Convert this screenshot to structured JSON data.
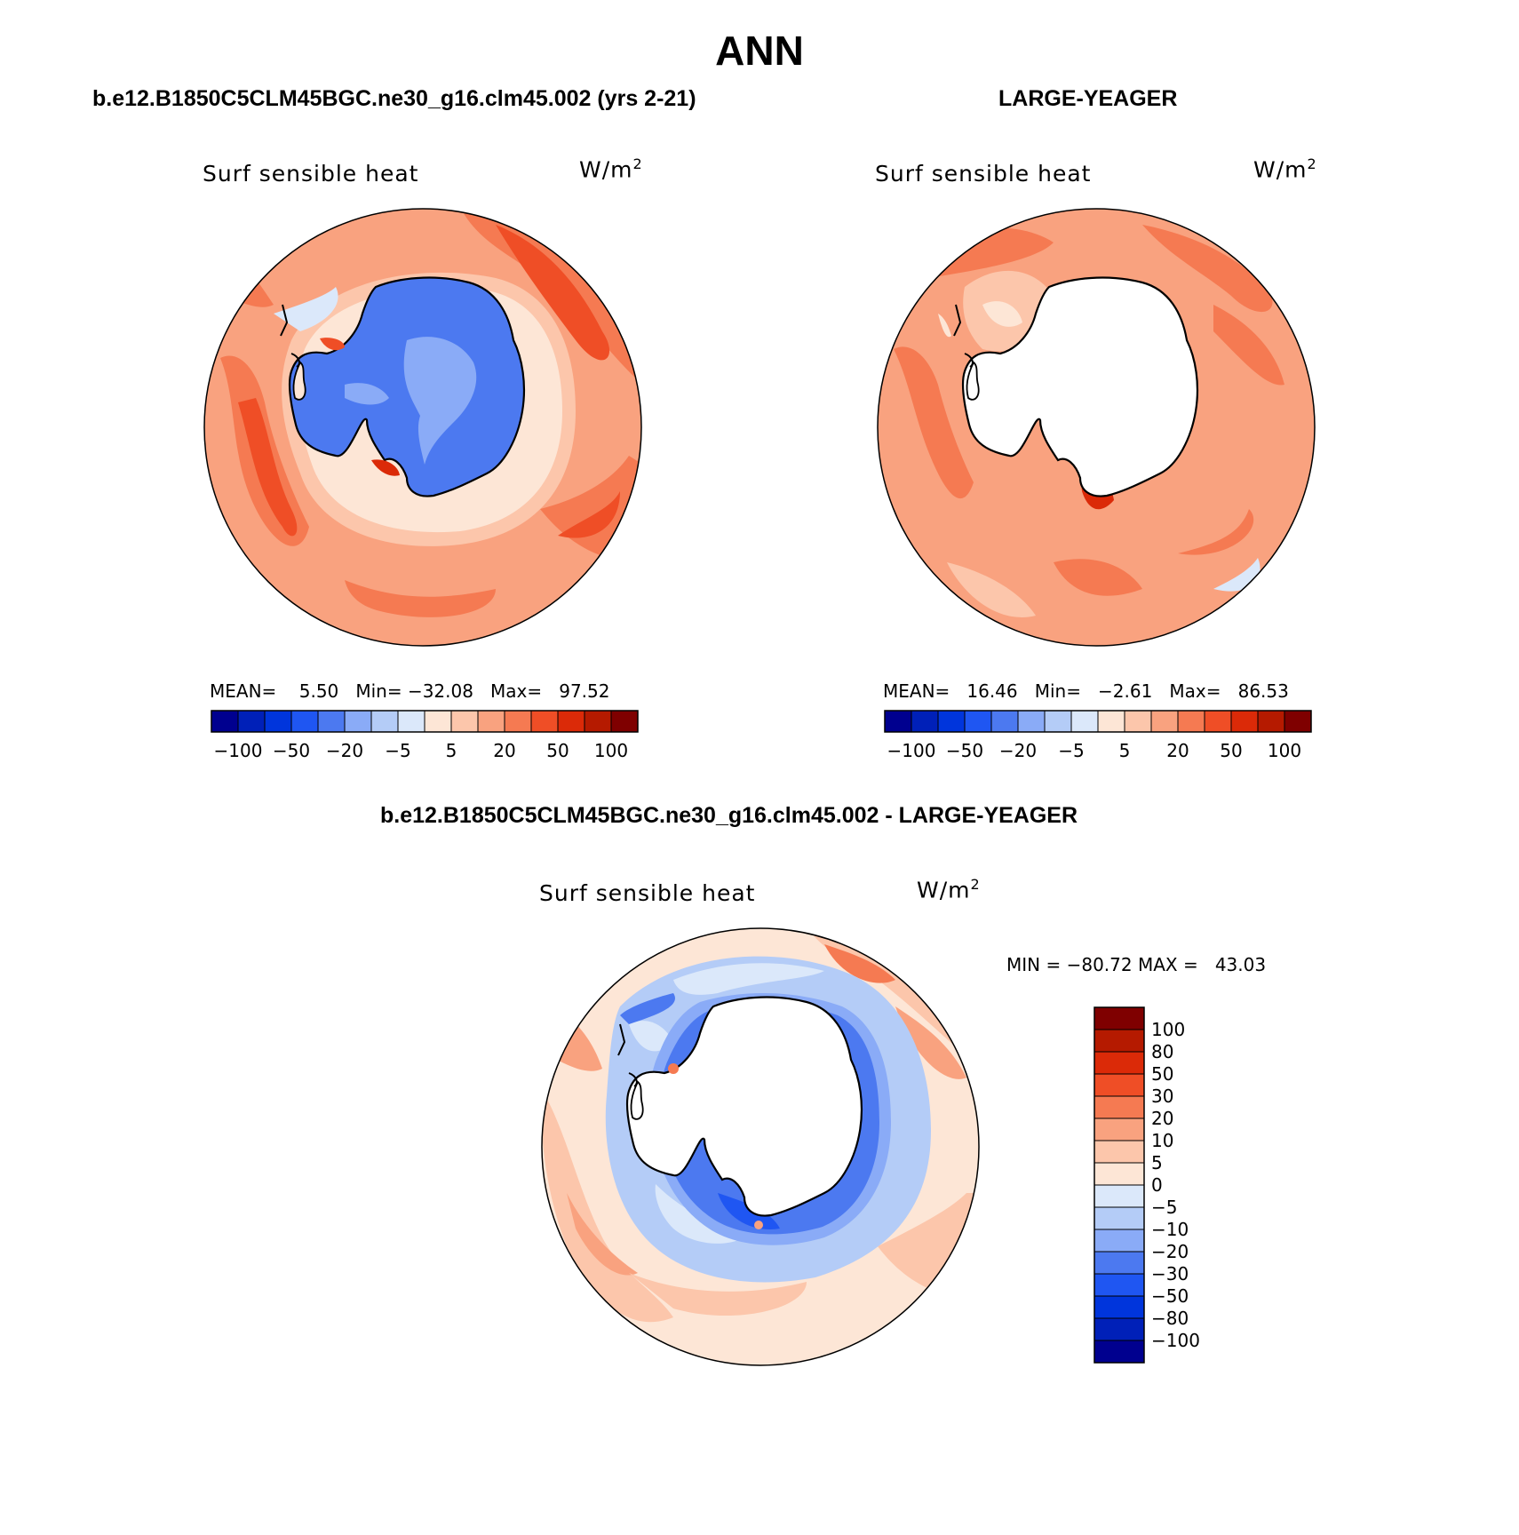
{
  "header": {
    "title": "ANN"
  },
  "panels": [
    {
      "case_title": "b.e12.B1850C5CLM45BGC.ne30_g16.clm45.002 (yrs 2-21)",
      "variable": "Surf  sensible  heat",
      "units": "W/m",
      "units_sup": "2",
      "stats": {
        "mean_label": "MEAN=",
        "mean_value": "5.50",
        "min_label": "Min=",
        "min_value": "−32.08",
        "max_label": "Max=",
        "max_value": "97.52"
      }
    },
    {
      "case_title": "LARGE-YEAGER",
      "variable": "Surf  sensible  heat",
      "units": "W/m",
      "units_sup": "2",
      "stats": {
        "mean_label": "MEAN=",
        "mean_value": "16.46",
        "min_label": "Min=",
        "min_value": "−2.61",
        "max_label": "Max=",
        "max_value": "86.53"
      }
    },
    {
      "case_title": "b.e12.B1850C5CLM45BGC.ne30_g16.clm45.002 - LARGE-YEAGER",
      "variable": "Surf  sensible  heat",
      "units": "W/m",
      "units_sup": "2",
      "stats": {
        "min_label": "MIN =",
        "min_value": "−80.72",
        "max_label": "MAX =",
        "max_value": "43.03"
      }
    }
  ],
  "colorbar_horizontal": {
    "colors": [
      "#00008f",
      "#0020b8",
      "#0035dc",
      "#1f56f2",
      "#4c79f0",
      "#8aabf7",
      "#b4ccf7",
      "#dbe8fa",
      "#fde6d6",
      "#fcc6ab",
      "#f9a27f",
      "#f57a52",
      "#ef4e26",
      "#db2a08",
      "#b51a00",
      "#7f0000"
    ],
    "tick_labels": [
      "−100",
      "−50",
      "−20",
      "−5",
      "5",
      "20",
      "50",
      "100"
    ]
  },
  "colorbar_vertical": {
    "colors": [
      "#7f0000",
      "#b51a00",
      "#db2a08",
      "#ef4e26",
      "#f57a52",
      "#f9a27f",
      "#fcc6ab",
      "#fde6d6",
      "#dbe8fa",
      "#b4ccf7",
      "#8aabf7",
      "#4c79f0",
      "#1f56f2",
      "#0035dc",
      "#0020b8",
      "#00008f"
    ],
    "tick_labels": [
      "100",
      "80",
      "50",
      "30",
      "20",
      "10",
      "5",
      "0",
      "−5",
      "−10",
      "−20",
      "−30",
      "−50",
      "−80",
      "−100"
    ]
  }
}
